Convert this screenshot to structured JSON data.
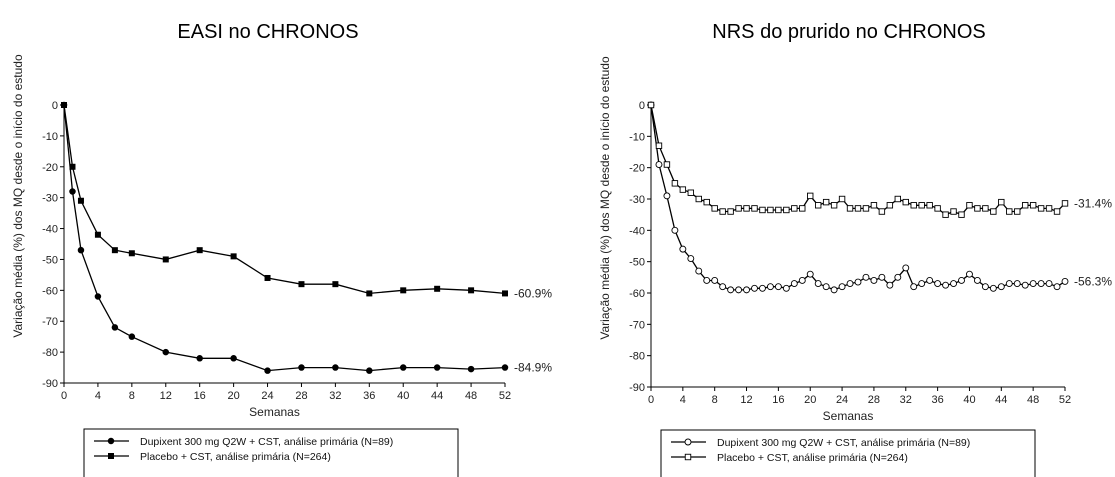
{
  "chart_data": [
    {
      "type": "line",
      "title": "EASI no CHRONOS",
      "xlabel": "Semanas",
      "ylabel": "Variação média (%) dos MQ desde o início do estudo",
      "xlim": [
        0,
        52
      ],
      "ylim": [
        -90,
        0
      ],
      "xticks": [
        "0",
        "4",
        "8",
        "12",
        "16",
        "20",
        "24",
        "28",
        "32",
        "36",
        "40",
        "44",
        "48",
        "52"
      ],
      "yticks": [
        "0",
        "-10",
        "-20",
        "-30",
        "-40",
        "-50",
        "-60",
        "-70",
        "-80",
        "-90"
      ],
      "legend": [
        "Dupixent 300 mg Q2W + CST, análise primária (N=89)",
        "Placebo + CST, análise primária (N=264)"
      ],
      "series": [
        {
          "name": "Dupixent 300 mg Q2W + CST, análise primária (N=89)",
          "marker": "filled-circle",
          "x": [
            0,
            1,
            2,
            4,
            6,
            8,
            12,
            16,
            20,
            24,
            28,
            32,
            36,
            40,
            44,
            48,
            52
          ],
          "values": [
            0,
            -28,
            -47,
            -62,
            -72,
            -75,
            -80,
            -82,
            -82,
            -86,
            -85,
            -85,
            -86,
            -85,
            -85,
            -85.5,
            -85
          ],
          "end_label": "-84.9%"
        },
        {
          "name": "Placebo + CST, análise primária (N=264)",
          "marker": "filled-square",
          "x": [
            0,
            1,
            2,
            4,
            6,
            8,
            12,
            16,
            20,
            24,
            28,
            32,
            36,
            40,
            44,
            48,
            52
          ],
          "values": [
            0,
            -20,
            -31,
            -42,
            -47,
            -48,
            -50,
            -47,
            -49,
            -56,
            -58,
            -58,
            -61,
            -60,
            -59.5,
            -60,
            -61
          ],
          "end_label": "-60.9%"
        }
      ]
    },
    {
      "type": "line",
      "title": "NRS do prurido no CHRONOS",
      "xlabel": "Semanas",
      "ylabel": "Variação média (%) dos MQ desde o início do estudo",
      "xlim": [
        0,
        52
      ],
      "ylim": [
        -90,
        0
      ],
      "xticks": [
        "0",
        "4",
        "8",
        "12",
        "16",
        "20",
        "24",
        "28",
        "32",
        "36",
        "40",
        "44",
        "48",
        "52"
      ],
      "yticks": [
        "0",
        "-10",
        "-20",
        "-30",
        "-40",
        "-50",
        "-60",
        "-70",
        "-80",
        "-90"
      ],
      "legend": [
        "Dupixent 300 mg Q2W + CST, análise primária (N=89)",
        "Placebo + CST, análise primária (N=264)"
      ],
      "series": [
        {
          "name": "Dupixent 300 mg Q2W + CST, análise primária (N=89)",
          "marker": "open-circle",
          "x": [
            0,
            1,
            2,
            3,
            4,
            5,
            6,
            7,
            8,
            9,
            10,
            11,
            12,
            13,
            14,
            15,
            16,
            17,
            18,
            19,
            20,
            21,
            22,
            23,
            24,
            25,
            26,
            27,
            28,
            29,
            30,
            31,
            32,
            33,
            34,
            35,
            36,
            37,
            38,
            39,
            40,
            41,
            42,
            43,
            44,
            45,
            46,
            47,
            48,
            49,
            50,
            51,
            52
          ],
          "values": [
            0,
            -19,
            -29,
            -40,
            -46,
            -49,
            -53,
            -56,
            -56,
            -58,
            -59,
            -59,
            -59,
            -58.5,
            -58.5,
            -58,
            -58,
            -58.5,
            -57,
            -56,
            -54,
            -57,
            -58,
            -59,
            -58,
            -57,
            -56.5,
            -55,
            -56,
            -55,
            -57.5,
            -55,
            -52,
            -58,
            -57,
            -56,
            -57,
            -57.5,
            -57,
            -56,
            -54,
            -56,
            -58,
            -58.5,
            -58,
            -57,
            -57,
            -57.5,
            -57,
            -57,
            -57,
            -58,
            -56.3
          ],
          "end_label": "-56.3%"
        },
        {
          "name": "Placebo + CST, análise primária (N=264)",
          "marker": "open-square",
          "x": [
            0,
            1,
            2,
            3,
            4,
            5,
            6,
            7,
            8,
            9,
            10,
            11,
            12,
            13,
            14,
            15,
            16,
            17,
            18,
            19,
            20,
            21,
            22,
            23,
            24,
            25,
            26,
            27,
            28,
            29,
            30,
            31,
            32,
            33,
            34,
            35,
            36,
            37,
            38,
            39,
            40,
            41,
            42,
            43,
            44,
            45,
            46,
            47,
            48,
            49,
            50,
            51,
            52
          ],
          "values": [
            0,
            -13,
            -19,
            -25,
            -27,
            -28,
            -30,
            -31,
            -33,
            -34,
            -34,
            -33,
            -33,
            -33,
            -33.5,
            -33.5,
            -33.5,
            -33.5,
            -33,
            -33,
            -29,
            -32,
            -31,
            -32,
            -30,
            -33,
            -33,
            -33,
            -32,
            -34,
            -32,
            -30,
            -31,
            -32,
            -32,
            -32,
            -33,
            -35,
            -34,
            -35,
            -32,
            -33,
            -33,
            -34,
            -31,
            -34,
            -34,
            -32,
            -32,
            -33,
            -33,
            -34,
            -31.4
          ],
          "end_label": "-31.4%"
        }
      ]
    }
  ]
}
